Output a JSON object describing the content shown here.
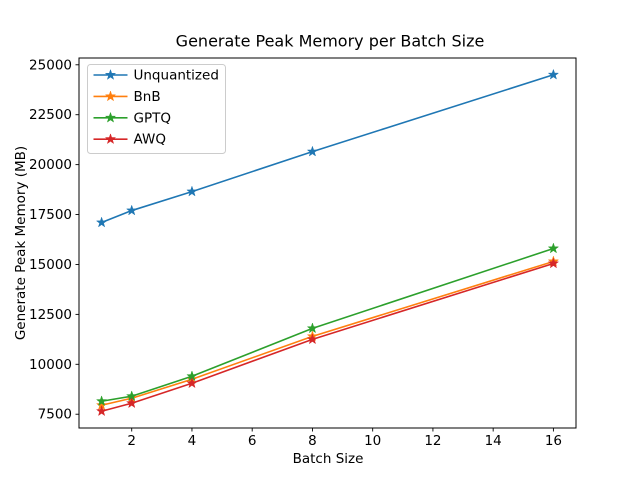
{
  "chart_data": {
    "type": "line",
    "title": "Generate Peak Memory per Batch Size",
    "xlabel": "Batch Size",
    "ylabel": "Generate Peak Memory (MB)",
    "x": [
      1,
      2,
      4,
      8,
      16
    ],
    "series": [
      {
        "name": "Unquantized",
        "color": "#1f77b4",
        "values": [
          17100,
          17700,
          18650,
          20650,
          24500
        ]
      },
      {
        "name": "BnB",
        "color": "#ff7f0e",
        "values": [
          7950,
          8300,
          9250,
          11400,
          15150
        ]
      },
      {
        "name": "GPTQ",
        "color": "#2ca02c",
        "values": [
          8150,
          8400,
          9400,
          11800,
          15800
        ]
      },
      {
        "name": "AWQ",
        "color": "#d62728",
        "values": [
          7650,
          8050,
          9050,
          11250,
          15050
        ]
      }
    ],
    "marker": "star",
    "xticks": [
      2,
      4,
      6,
      8,
      10,
      12,
      14,
      16
    ],
    "yticks": [
      7500,
      10000,
      12500,
      15000,
      17500,
      20000,
      22500,
      25000
    ],
    "xlim": [
      0.25,
      16.75
    ],
    "ylim": [
      6810,
      25340
    ],
    "grid": false,
    "legend_position": "upper-left",
    "background": "#ffffff",
    "axis_color": "#000000",
    "legend_border_color": "#cccccc"
  }
}
